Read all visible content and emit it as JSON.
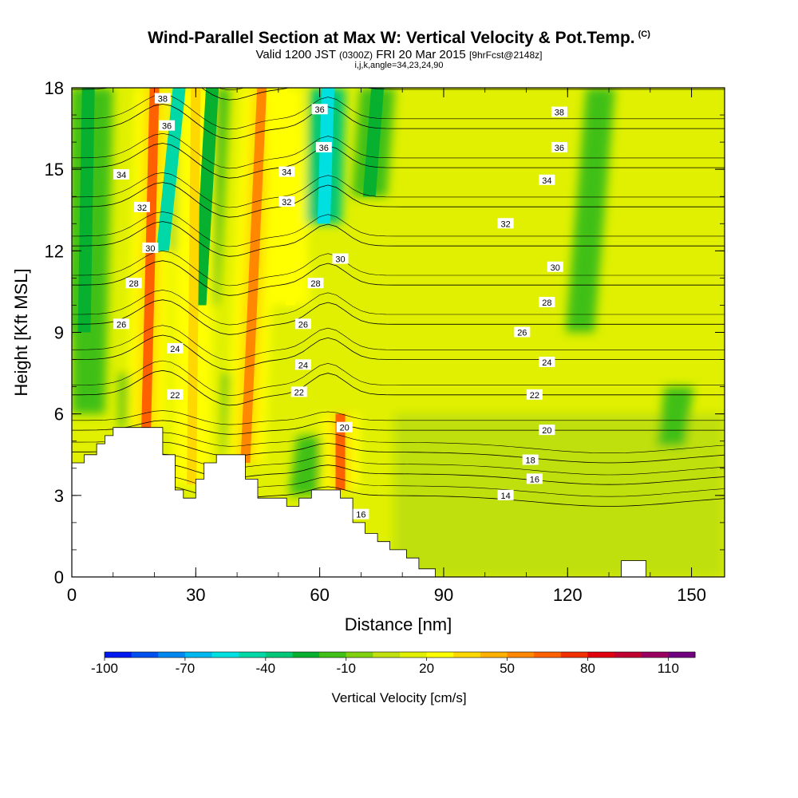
{
  "title": {
    "main": "Wind-Parallel Section at Max W: Vertical Velocity & Pot.Temp.",
    "unit": "(C)",
    "valid_prefix": "Valid 1200 JST",
    "valid_z": "(0300Z)",
    "valid_date": "FRI 20 Mar 2015",
    "valid_fcst": "[9hrFcst@2148z]",
    "indices": "i,j,k,angle=34,23,24,90"
  },
  "chart_data": {
    "type": "heatmap",
    "xlabel": "Distance [nm]",
    "ylabel": "Height [Kft MSL]",
    "xlim": [
      0,
      158
    ],
    "ylim": [
      0,
      18
    ],
    "xticks": [
      0,
      30,
      60,
      90,
      120,
      150
    ],
    "yticks": [
      0,
      3,
      6,
      9,
      12,
      15,
      18
    ],
    "colorbar": {
      "label": "Vertical Velocity [cm/s]",
      "levels": [
        -100,
        -90,
        -80,
        -70,
        -60,
        -50,
        -40,
        -30,
        -20,
        -10,
        0,
        10,
        20,
        30,
        40,
        50,
        60,
        70,
        80,
        90,
        100,
        110,
        120
      ],
      "tick_values": [
        -100,
        -70,
        -40,
        -10,
        20,
        50,
        80,
        110
      ],
      "colors": [
        "#0018f0",
        "#0050f0",
        "#0088f0",
        "#00b8f0",
        "#00e0e0",
        "#00d8a8",
        "#00c878",
        "#08b030",
        "#40c018",
        "#80d010",
        "#c0e010",
        "#e0f000",
        "#ffff00",
        "#ffd800",
        "#ffb000",
        "#ff8800",
        "#ff6000",
        "#f03000",
        "#e00010",
        "#c00030",
        "#9a0060",
        "#700080"
      ]
    },
    "terrain_kft": [
      [
        0,
        4.2
      ],
      [
        3,
        4.2
      ],
      [
        3,
        4.5
      ],
      [
        6,
        4.5
      ],
      [
        6,
        4.9
      ],
      [
        8,
        4.9
      ],
      [
        8,
        5.2
      ],
      [
        10,
        5.2
      ],
      [
        10,
        5.5
      ],
      [
        22,
        5.5
      ],
      [
        22,
        4.5
      ],
      [
        25,
        4.5
      ],
      [
        25,
        3.2
      ],
      [
        27,
        3.2
      ],
      [
        27,
        2.9
      ],
      [
        30,
        2.9
      ],
      [
        30,
        3.6
      ],
      [
        32,
        3.6
      ],
      [
        32,
        4.2
      ],
      [
        35,
        4.2
      ],
      [
        35,
        4.5
      ],
      [
        42,
        4.5
      ],
      [
        42,
        3.6
      ],
      [
        45,
        3.6
      ],
      [
        45,
        2.9
      ],
      [
        52,
        2.9
      ],
      [
        52,
        2.6
      ],
      [
        55,
        2.6
      ],
      [
        55,
        2.9
      ],
      [
        58,
        2.9
      ],
      [
        58,
        3.2
      ],
      [
        65,
        3.2
      ],
      [
        65,
        2.9
      ],
      [
        68,
        2.9
      ],
      [
        68,
        2.0
      ],
      [
        71,
        2.0
      ],
      [
        71,
        1.6
      ],
      [
        74,
        1.6
      ],
      [
        74,
        1.3
      ],
      [
        77,
        1.3
      ],
      [
        77,
        1.0
      ],
      [
        81,
        1.0
      ],
      [
        81,
        0.7
      ],
      [
        84,
        0.7
      ],
      [
        84,
        0.3
      ],
      [
        88,
        0.3
      ],
      [
        88,
        0.0
      ],
      [
        158,
        0.0
      ]
    ],
    "terrain_bumps": [
      [
        133,
        139,
        0.6
      ]
    ],
    "updraft_bands": [
      {
        "x0": 20,
        "x1": 18,
        "ytop": 18,
        "ybot": 5.5,
        "value": 60
      },
      {
        "x0": 46,
        "x1": 42,
        "ytop": 18,
        "ybot": 4.2,
        "value": 50
      },
      {
        "x0": 65,
        "x1": 65,
        "ytop": 6.0,
        "ybot": 3.2,
        "value": 60
      },
      {
        "x0": 30,
        "x1": 29,
        "ytop": 18,
        "ybot": 3.4,
        "value": 30
      },
      {
        "x0": 51,
        "x1": 53,
        "ytop": 18,
        "ybot": 10,
        "value": 20
      }
    ],
    "downdraft_bands": [
      {
        "x0": 26,
        "x1": 22,
        "ytop": 18,
        "ybot": 12,
        "value": -50
      },
      {
        "x0": 62,
        "x1": 61,
        "ytop": 18,
        "ybot": 13,
        "value": -60
      },
      {
        "x0": 4,
        "x1": 3,
        "ytop": 18,
        "ybot": 9,
        "value": -30
      },
      {
        "x0": 34,
        "x1": 31,
        "ytop": 18,
        "ybot": 10,
        "value": -30
      },
      {
        "x0": 74,
        "x1": 72,
        "ytop": 18,
        "ybot": 14,
        "value": -30
      },
      {
        "x0": 15,
        "x1": 15,
        "ytop": 7.5,
        "ybot": 5.5,
        "value": -20
      },
      {
        "x0": 40,
        "x1": 40,
        "ytop": 7.5,
        "ybot": 4.5,
        "value": -20
      },
      {
        "x0": 58,
        "x1": 56,
        "ytop": 5.2,
        "ybot": 3.0,
        "value": -15
      },
      {
        "x0": 128,
        "x1": 123,
        "ytop": 18,
        "ybot": 9,
        "value": -15
      },
      {
        "x0": 147,
        "x1": 145,
        "ytop": 7.0,
        "ybot": 4.8,
        "value": -15
      }
    ],
    "theta_contours": [
      14,
      16,
      18,
      20,
      22,
      24,
      26,
      28,
      30,
      32,
      34,
      36,
      38
    ],
    "theta_labels": [
      {
        "text": "38",
        "x": 22,
        "y": 17.6
      },
      {
        "text": "36",
        "x": 23,
        "y": 16.6
      },
      {
        "text": "34",
        "x": 12,
        "y": 14.8
      },
      {
        "text": "32",
        "x": 17,
        "y": 13.6
      },
      {
        "text": "30",
        "x": 19,
        "y": 12.1
      },
      {
        "text": "28",
        "x": 15,
        "y": 10.8
      },
      {
        "text": "26",
        "x": 12,
        "y": 9.3
      },
      {
        "text": "24",
        "x": 25,
        "y": 8.4
      },
      {
        "text": "22",
        "x": 25,
        "y": 6.7
      },
      {
        "text": "36",
        "x": 60,
        "y": 17.2
      },
      {
        "text": "36",
        "x": 61,
        "y": 15.8
      },
      {
        "text": "34",
        "x": 52,
        "y": 14.9
      },
      {
        "text": "32",
        "x": 52,
        "y": 13.8
      },
      {
        "text": "30",
        "x": 65,
        "y": 11.7
      },
      {
        "text": "28",
        "x": 59,
        "y": 10.8
      },
      {
        "text": "26",
        "x": 56,
        "y": 9.3
      },
      {
        "text": "24",
        "x": 56,
        "y": 7.8
      },
      {
        "text": "22",
        "x": 55,
        "y": 6.8
      },
      {
        "text": "20",
        "x": 66,
        "y": 5.5
      },
      {
        "text": "16",
        "x": 70,
        "y": 2.3
      },
      {
        "text": "38",
        "x": 118,
        "y": 17.1
      },
      {
        "text": "36",
        "x": 118,
        "y": 15.8
      },
      {
        "text": "34",
        "x": 115,
        "y": 14.6
      },
      {
        "text": "32",
        "x": 105,
        "y": 13.0
      },
      {
        "text": "30",
        "x": 117,
        "y": 11.4
      },
      {
        "text": "28",
        "x": 115,
        "y": 10.1
      },
      {
        "text": "26",
        "x": 109,
        "y": 9.0
      },
      {
        "text": "24",
        "x": 115,
        "y": 7.9
      },
      {
        "text": "22",
        "x": 112,
        "y": 6.7
      },
      {
        "text": "20",
        "x": 115,
        "y": 5.4
      },
      {
        "text": "18",
        "x": 111,
        "y": 4.3
      },
      {
        "text": "16",
        "x": 112,
        "y": 3.6
      },
      {
        "text": "14",
        "x": 105,
        "y": 3.0
      }
    ]
  }
}
